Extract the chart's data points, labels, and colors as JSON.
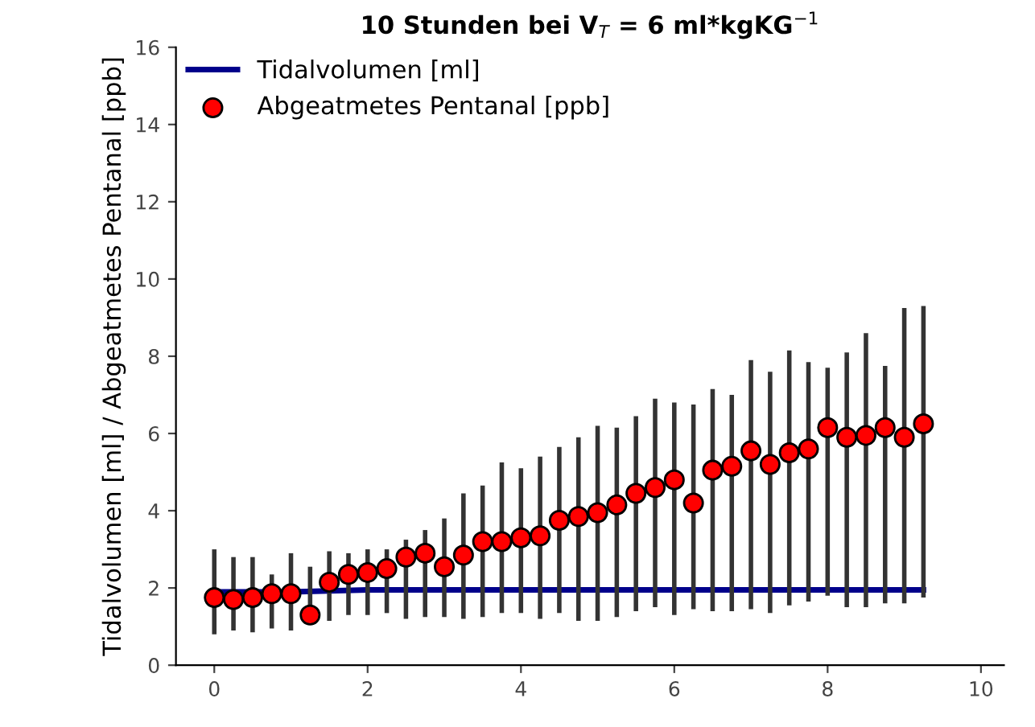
{
  "chart_data": {
    "type": "scatter",
    "title": "10 Stunden bei V$_{T}$ = 6 ml*kgKG$^{−1}$",
    "ylabel": "Tidalvolumen [ml] / Abgeatmetes Pentanal [ppb]",
    "xlim": [
      -0.5,
      10.3
    ],
    "xticks": [
      0,
      2,
      4,
      6,
      8,
      10
    ],
    "ylim": [
      0,
      16
    ],
    "yticks": [
      0,
      2,
      4,
      6,
      8,
      10,
      12,
      14,
      16
    ],
    "grid": false,
    "legend": "top left",
    "series": [
      {
        "name": "Tidalvolumen [ml]",
        "type": "line",
        "color": "#00008b",
        "marker": "none",
        "line_style": "solid",
        "x": [
          0,
          1,
          2,
          3,
          4,
          5,
          6,
          7,
          8,
          9,
          9.25
        ],
        "values": [
          1.9,
          1.9,
          1.95,
          1.95,
          1.95,
          1.95,
          1.95,
          1.95,
          1.95,
          1.95,
          1.95
        ]
      },
      {
        "name": "Abgeatmetes Pentanal [ppb]",
        "color": "#ff0000",
        "marker": "circle",
        "x": [
          0,
          0.25,
          0.5,
          0.75,
          1,
          1.25,
          1.5,
          1.75,
          2,
          2.25,
          2.5,
          2.75,
          3,
          3.25,
          3.5,
          3.75,
          4,
          4.25,
          4.5,
          4.75,
          5,
          5.25,
          5.5,
          5.75,
          6,
          6.25,
          6.5,
          6.75,
          7,
          7.25,
          7.5,
          7.75,
          8,
          8.25,
          8.5,
          8.75,
          9,
          9.25
        ],
        "values": [
          1.75,
          1.7,
          1.75,
          1.85,
          1.85,
          1.3,
          2.15,
          2.35,
          2.4,
          2.5,
          2.8,
          2.9,
          2.55,
          2.85,
          3.2,
          3.2,
          3.3,
          3.35,
          3.75,
          3.85,
          3.95,
          4.15,
          4.45,
          4.6,
          4.8,
          4.2,
          5.05,
          5.15,
          5.55,
          5.2,
          5.5,
          5.6,
          6.15,
          5.9,
          5.95,
          6.15,
          5.9,
          6.25
        ],
        "errors": [
          [
            0.8,
            3.0
          ],
          [
            0.9,
            2.8
          ],
          [
            0.85,
            2.8
          ],
          [
            0.95,
            2.35
          ],
          [
            0.9,
            2.9
          ],
          [
            1.2,
            2.55
          ],
          [
            1.15,
            2.95
          ],
          [
            1.3,
            2.9
          ],
          [
            1.3,
            3.0
          ],
          [
            1.35,
            3.0
          ],
          [
            1.2,
            3.25
          ],
          [
            1.25,
            3.5
          ],
          [
            1.25,
            3.8
          ],
          [
            1.2,
            4.45
          ],
          [
            1.25,
            4.65
          ],
          [
            1.35,
            5.25
          ],
          [
            1.35,
            5.1
          ],
          [
            1.2,
            5.4
          ],
          [
            1.35,
            5.65
          ],
          [
            1.15,
            5.9
          ],
          [
            1.15,
            6.2
          ],
          [
            1.25,
            6.15
          ],
          [
            1.4,
            6.45
          ],
          [
            1.5,
            6.9
          ],
          [
            1.3,
            6.8
          ],
          [
            1.45,
            6.75
          ],
          [
            1.4,
            7.15
          ],
          [
            1.4,
            7.0
          ],
          [
            1.45,
            7.9
          ],
          [
            1.35,
            7.6
          ],
          [
            1.55,
            8.15
          ],
          [
            1.65,
            7.85
          ],
          [
            1.8,
            7.7
          ],
          [
            1.5,
            8.1
          ],
          [
            1.5,
            8.6
          ],
          [
            1.6,
            7.75
          ],
          [
            1.6,
            9.25
          ],
          [
            1.75,
            9.3
          ]
        ]
      }
    ]
  }
}
